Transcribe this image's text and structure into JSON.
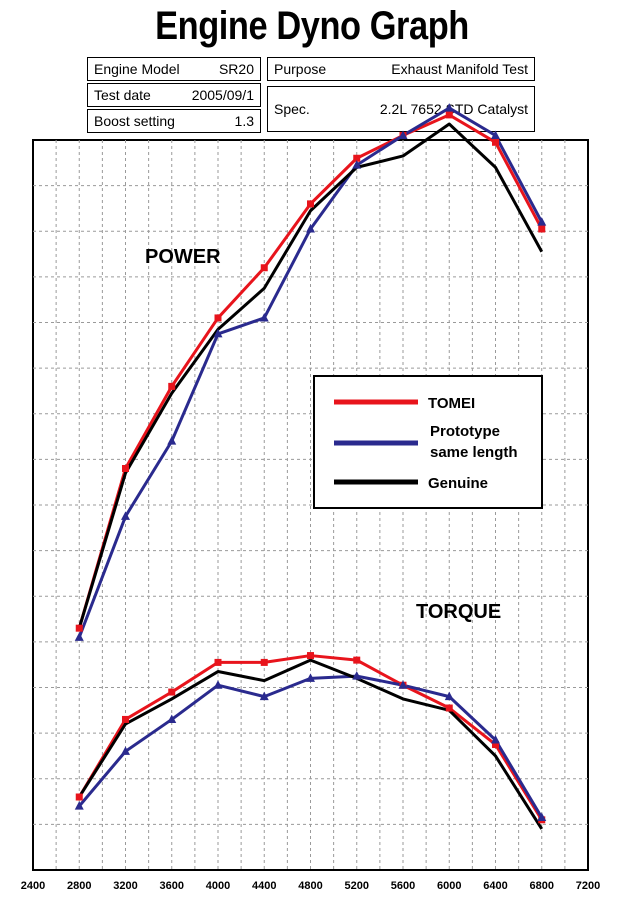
{
  "header": {
    "title": "Engine Dyno Graph",
    "engine_model_label": "Engine Model",
    "engine_model_value": "SR20",
    "test_date_label": "Test date",
    "test_date_value": "2005/09/1",
    "boost_label": "Boost setting",
    "boost_value": "1.3",
    "purpose_label": "Purpose",
    "purpose_value": "Exhaust Manifold Test",
    "spec_label": "Spec.",
    "spec_value": "2.2L 7652 STD Catalyst"
  },
  "chart_data": {
    "type": "line",
    "xlabel": "",
    "ylabel": "",
    "x_ticks": [
      2400,
      2800,
      3200,
      3600,
      4000,
      4400,
      4800,
      5200,
      5600,
      6000,
      6400,
      6800,
      7200
    ],
    "xlim": [
      2400,
      7200
    ],
    "ylim": [
      0,
      16
    ],
    "grid": true,
    "legend_position": "center-right",
    "annotations": [
      "POWER",
      "TORQUE"
    ],
    "x": [
      2800,
      3200,
      3600,
      4000,
      4400,
      4800,
      5200,
      5600,
      6000,
      6400,
      6800
    ],
    "groups": [
      {
        "label": "POWER",
        "series": [
          {
            "name": "TOMEI",
            "color": "#e8141c",
            "marker": "square",
            "values": [
              5.3,
              8.8,
              10.6,
              12.1,
              13.2,
              14.6,
              15.6,
              16.1,
              16.55,
              15.95,
              14.05
            ]
          },
          {
            "name": "Prototype same length",
            "color": "#2a2a8e",
            "marker": "triangle",
            "values": [
              5.1,
              7.75,
              9.4,
              11.75,
              12.1,
              14.05,
              15.45,
              16.1,
              16.7,
              16.1,
              14.2
            ]
          },
          {
            "name": "Genuine",
            "color": "#000000",
            "marker": "none",
            "values": [
              5.3,
              8.7,
              10.45,
              11.85,
              12.75,
              14.45,
              15.4,
              15.65,
              16.35,
              15.4,
              13.55
            ]
          }
        ]
      },
      {
        "label": "TORQUE",
        "series": [
          {
            "name": "TOMEI",
            "color": "#e8141c",
            "marker": "square",
            "values": [
              1.6,
              3.3,
              3.9,
              4.55,
              4.55,
              4.7,
              4.6,
              4.05,
              3.55,
              2.75,
              1.1
            ]
          },
          {
            "name": "Prototype same length",
            "color": "#2a2a8e",
            "marker": "triangle",
            "values": [
              1.4,
              2.6,
              3.3,
              4.05,
              3.8,
              4.2,
              4.25,
              4.05,
              3.8,
              2.85,
              1.15
            ]
          },
          {
            "name": "Genuine",
            "color": "#000000",
            "marker": "none",
            "values": [
              1.6,
              3.2,
              3.75,
              4.35,
              4.15,
              4.6,
              4.2,
              3.75,
              3.5,
              2.5,
              0.9
            ]
          }
        ]
      }
    ],
    "legend": [
      {
        "label": "TOMEI",
        "color": "#e8141c"
      },
      {
        "label_lines": [
          "Prototype",
          "same length"
        ],
        "color": "#2a2a8e"
      },
      {
        "label": "Genuine",
        "color": "#000000"
      }
    ]
  }
}
